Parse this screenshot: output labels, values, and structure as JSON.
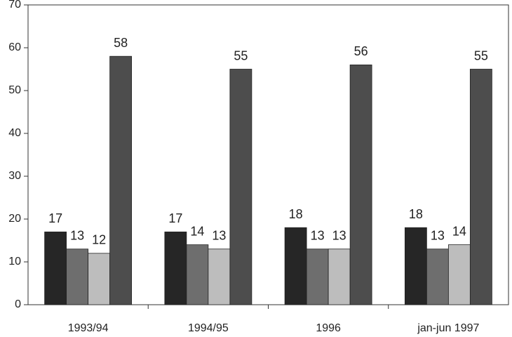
{
  "chart_data": {
    "type": "bar",
    "categories": [
      "1993/94",
      "1994/95",
      "1996",
      "jan-jun 1997"
    ],
    "series": [
      {
        "color": "#262626",
        "values": [
          17,
          17,
          18,
          18
        ]
      },
      {
        "color": "#6e6e6e",
        "values": [
          13,
          14,
          13,
          13
        ]
      },
      {
        "color": "#bdbdbd",
        "values": [
          12,
          13,
          13,
          14
        ]
      },
      {
        "color": "#4d4d4d",
        "values": [
          58,
          55,
          56,
          55
        ]
      }
    ],
    "ylim": [
      0,
      70
    ],
    "yticks": [
      0,
      10,
      20,
      30,
      40,
      50,
      60,
      70
    ]
  }
}
